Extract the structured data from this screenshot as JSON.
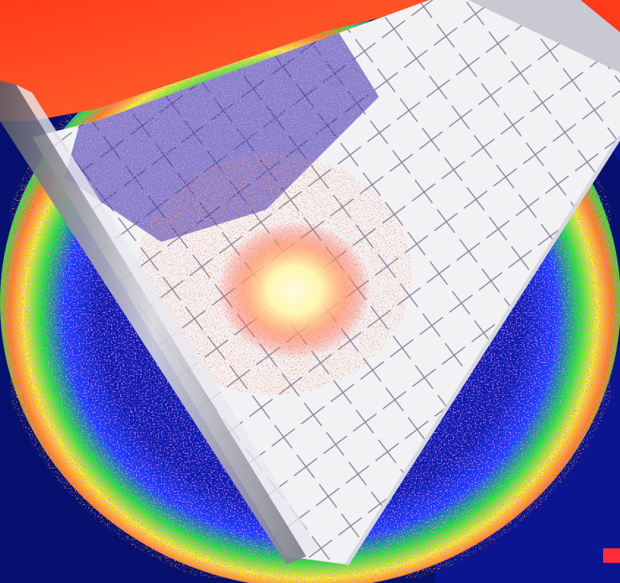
{
  "image": {
    "kind": "false-color thermal-style photograph",
    "colors": {
      "background_navy": "#06106e",
      "deep_blue": "#0a1a9a",
      "violet_speckle": "#b23cff",
      "green_ring": "#22e03a",
      "yellow_ring": "#f4f032",
      "orange_speckle": "#ff7a1a",
      "red_top": "#ff2a1a",
      "grid_white": "#f2f1f4",
      "hot_spot": "#fff7b0",
      "frame_grey": "#9a9aa6"
    }
  }
}
